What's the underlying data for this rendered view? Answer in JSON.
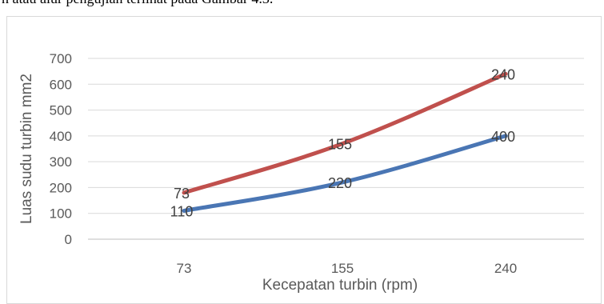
{
  "page_text": {
    "cut_caption": "n atau alur pengujian terlihat pada Gambar 4.3."
  },
  "chart_data": {
    "type": "line",
    "categories": [
      "73",
      "155",
      "240"
    ],
    "xlabel": "Kecepatan turbin (rpm)",
    "ylabel": "Luas sudu turbin mm2",
    "ylim": [
      0,
      700
    ],
    "yticks": [
      0,
      100,
      200,
      300,
      400,
      500,
      600,
      700
    ],
    "grid": true,
    "legend": "none",
    "series": [
      {
        "values": [
          110,
          220,
          400
        ],
        "labels": [
          "110",
          "220",
          "400"
        ],
        "color": "#4a76b4"
      },
      {
        "values": [
          180,
          370,
          640
        ],
        "labels": [
          "73",
          "155",
          "240"
        ],
        "color": "#c0504d"
      }
    ]
  }
}
